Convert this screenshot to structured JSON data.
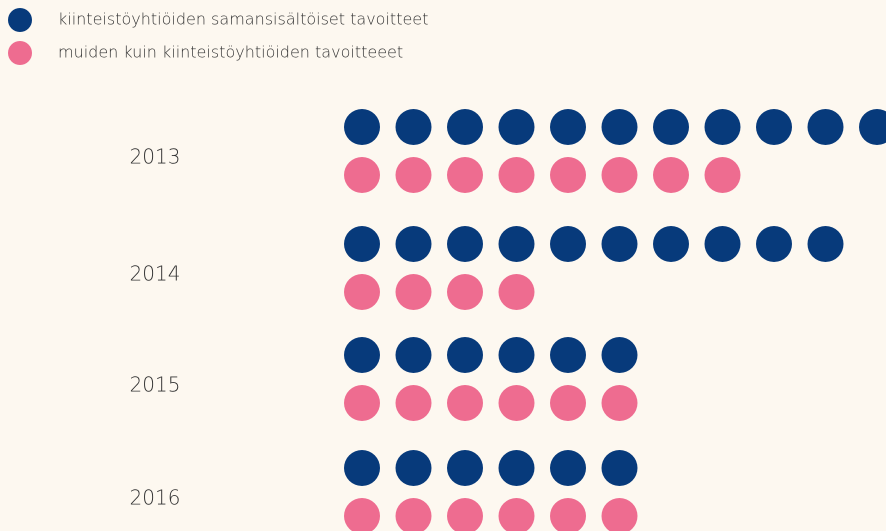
{
  "chart_data": {
    "type": "pictogram",
    "categories": [
      "2013",
      "2014",
      "2015",
      "2016"
    ],
    "series": [
      {
        "name": "kiinteistöyhtiöiden samansisältöiset tavoitteet",
        "color": "#073a7b",
        "values": [
          11,
          10,
          6,
          6
        ]
      },
      {
        "name": "muiden kuin kiinteistöyhtiöiden tavoitteeet",
        "color": "#ee6c90",
        "values": [
          8,
          4,
          6,
          6
        ]
      }
    ],
    "legend": "top-left"
  }
}
